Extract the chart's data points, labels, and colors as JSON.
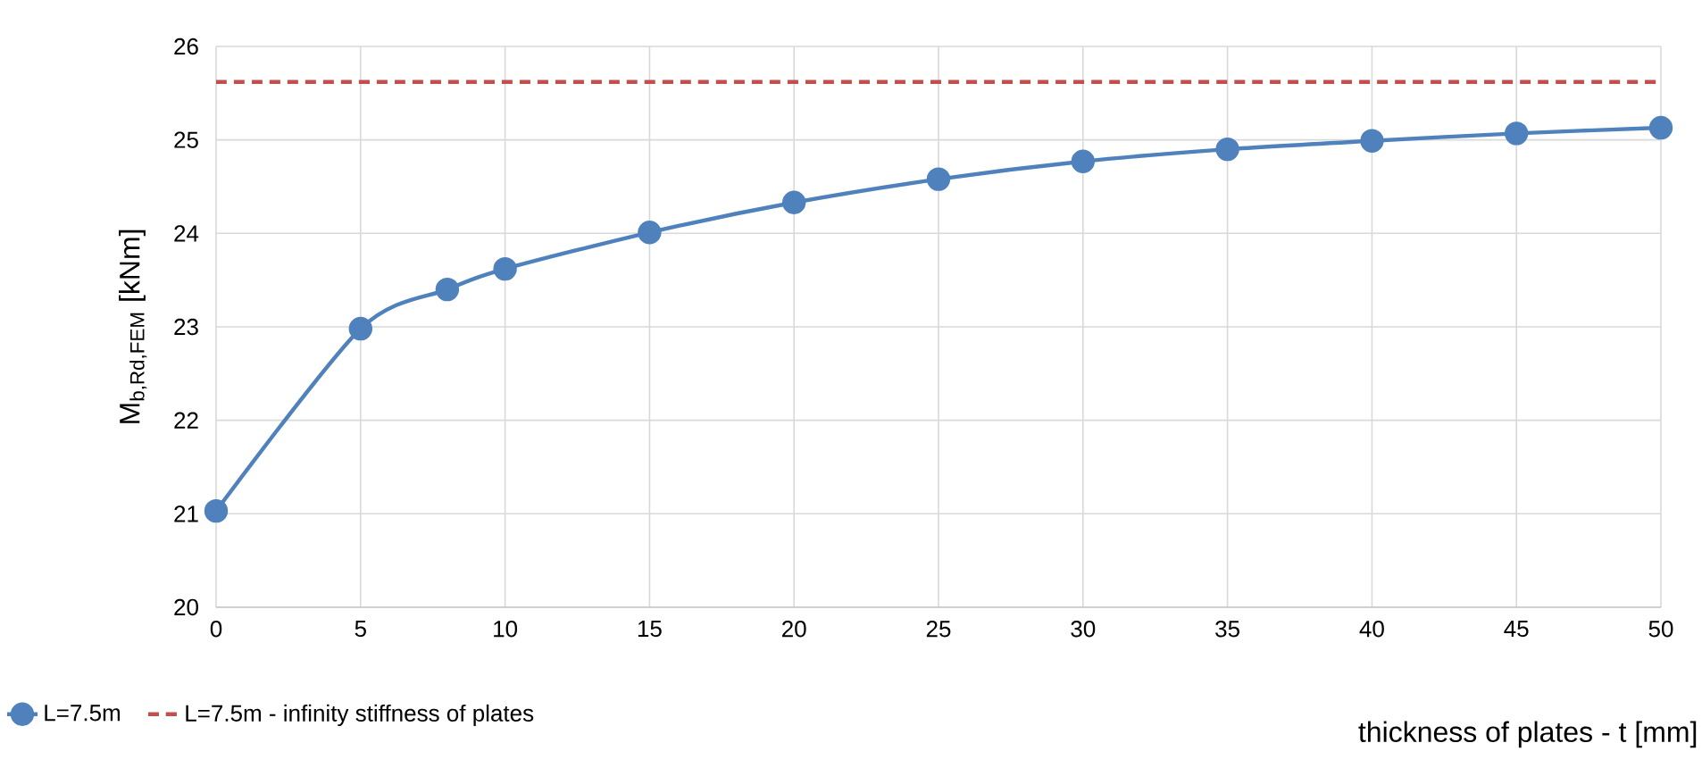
{
  "chart_data": {
    "type": "line",
    "xlabel": "thickness of plates - t [mm]",
    "ylabel": "M$_{b,Rd,FEM}$ [kNm]",
    "x": [
      0,
      5,
      8,
      10,
      15,
      20,
      25,
      30,
      35,
      40,
      45,
      50
    ],
    "series": [
      {
        "name": "L=7.5m",
        "color": "#4f81bd",
        "values": [
          21.03,
          22.98,
          23.4,
          23.62,
          24.01,
          24.33,
          24.58,
          24.77,
          24.9,
          24.99,
          25.07,
          25.13
        ]
      },
      {
        "name": "L=7.5m - infinity stiffness of plates",
        "color": "#c0504d",
        "x": [
          0,
          50
        ],
        "values": [
          25.62,
          25.62
        ],
        "line_style": "dashed",
        "marker": "none"
      }
    ],
    "xlim": [
      0,
      50
    ],
    "xticks": [
      0,
      5,
      10,
      15,
      20,
      25,
      30,
      35,
      40,
      45,
      50
    ],
    "ylim": [
      20,
      26
    ],
    "yticks": [
      20,
      21,
      22,
      23,
      24,
      25,
      26
    ],
    "grid": true,
    "legend": "bottom left",
    "marker": "circle",
    "line_style": "solid"
  }
}
